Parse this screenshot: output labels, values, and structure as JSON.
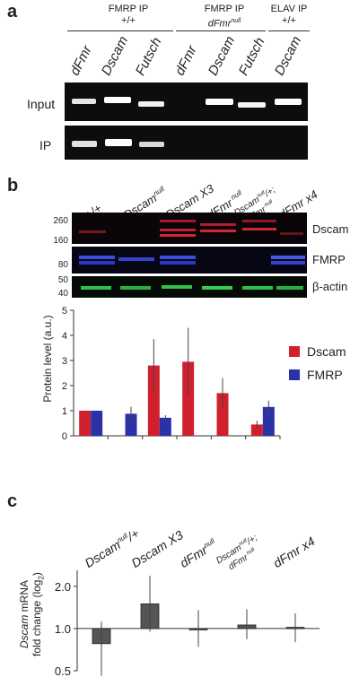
{
  "panel_a": {
    "letter": "a",
    "groups": [
      {
        "line1": "FMRP IP",
        "line2": "+/+"
      },
      {
        "line1": "FMRP IP",
        "line2_prefix": "dFmr",
        "line2_sup": "null"
      },
      {
        "line1": "ELAV IP",
        "line2": "+/+"
      }
    ],
    "lanes": [
      "dFmr",
      "Dscam",
      "Futsch",
      "dFmr",
      "Dscam",
      "Futsch",
      "Dscam"
    ],
    "rows": [
      "Input",
      "IP"
    ]
  },
  "panel_b": {
    "letter": "b",
    "lanes": [
      {
        "main": "+/+"
      },
      {
        "main": "Dscam",
        "sup": "null"
      },
      {
        "main": "Dscam X3"
      },
      {
        "main": "dFmr",
        "sup": " null"
      },
      {
        "main": "Dscam",
        "sup": "null",
        "tail": "/+;",
        "line2": "dFmr",
        "line2_sup": " null"
      },
      {
        "main": "dFmr x4"
      }
    ],
    "blots": [
      {
        "label": "Dscam",
        "mw": [
          "260",
          "160"
        ]
      },
      {
        "label": "FMRP",
        "mw": [
          "80"
        ]
      },
      {
        "label": "β-actin",
        "mw": [
          "50",
          "40"
        ]
      }
    ]
  },
  "panel_c": {
    "letter": "c",
    "lanes": [
      {
        "main": "Dscam",
        "sup": "null",
        "tail": "/+"
      },
      {
        "main": "Dscam X3"
      },
      {
        "main": "dFmr",
        "sup": "null"
      },
      {
        "main": "Dscam",
        "sup": "null",
        "tail": "/+;",
        "line2": "dFmr",
        "line2_sup": " null"
      },
      {
        "main": "dFmr x4"
      }
    ]
  },
  "chart_data": [
    {
      "type": "bar",
      "ylabel": "Protein level (a.u.)",
      "ylim": [
        0,
        5
      ],
      "yticks": [
        "0",
        "1",
        "2",
        "3",
        "4",
        "5"
      ],
      "categories": [
        "+/+",
        "Dscam null",
        "Dscam X3",
        "dFmr null",
        "Dscam null/+; dFmr null",
        "dFmr x4"
      ],
      "series": [
        {
          "name": "Dscam",
          "color": "#d0202e",
          "values": [
            1.0,
            null,
            2.8,
            2.95,
            1.7,
            0.45
          ],
          "err": [
            0,
            0,
            1.05,
            1.35,
            0.6,
            0.15
          ]
        },
        {
          "name": "FMRP",
          "color": "#2b32a8",
          "values": [
            1.0,
            0.88,
            0.72,
            null,
            null,
            1.15
          ],
          "err": [
            0,
            0.28,
            0.1,
            0,
            0,
            0.25
          ]
        }
      ],
      "legend": "right"
    },
    {
      "type": "bar",
      "ylabel_italic": "Dscam",
      "ylabel_rest": " mRNA",
      "ylabel2": "fold change (log",
      "ylabel2_sub": "2",
      "ylabel2_end": ")",
      "yscale": "log2",
      "ylim": [
        0.5,
        2.6
      ],
      "yticks": [
        "0.5",
        "1.0",
        "2.0"
      ],
      "baseline": 1.0,
      "categories": [
        "Dscam null/+",
        "Dscam X3",
        "dFmr null",
        "Dscam null/+; dFmr null",
        "dFmr x4"
      ],
      "series": [
        {
          "name": "",
          "color": "#555555",
          "values": [
            0.78,
            1.5,
            0.99,
            1.06,
            1.02
          ],
          "err_low": [
            0.46,
            0.95,
            0.74,
            0.84,
            0.8
          ],
          "err_high": [
            1.12,
            2.38,
            1.35,
            1.37,
            1.28
          ]
        }
      ]
    }
  ]
}
